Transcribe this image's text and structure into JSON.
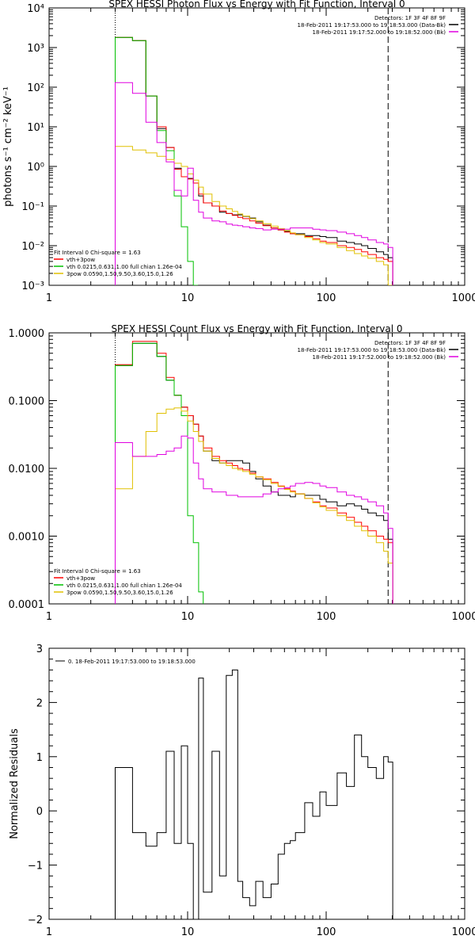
{
  "chart_data": [
    {
      "type": "line",
      "title": "SPEX HESSI Photon Flux vs Energy with Fit Function, Interval 0",
      "xlabel": "",
      "ylabel": "photons s⁻¹ cm⁻² keV⁻¹",
      "xscale": "log",
      "yscale": "log",
      "xlim": [
        1,
        1000
      ],
      "ylim": [
        0.001,
        10000
      ],
      "x_ticks": [
        "1",
        "10",
        "100",
        "1000"
      ],
      "y_ticks": [
        "10⁻³",
        "10⁻²",
        "10⁻¹",
        "10⁰",
        "10¹",
        "10²",
        "10³",
        "10⁴"
      ],
      "vlines": [
        3,
        280
      ],
      "legend_top_right": [
        "Detectors: 1F 3F 4F 8F 9F",
        "18-Feb-2011 19:17:53.000 to 19:18:53.000 (Data-Bk)",
        "18-Feb-2011 19:17:52.000 to 19:18:52.000 (Bk)"
      ],
      "legend_bottom_left": [
        "Fit Interval 0   Chi-square = 1.63",
        "vth+3pow",
        "vth 0.0215,0.631,1.00  full chian 1.26e-04",
        "3pow 0.0590,1.50,9.50,3.60,15.0,1.26"
      ],
      "series": [
        {
          "name": "18-Feb-2011 19:17:53.000 to 19:18:53.000 (Data-Bk)",
          "color": "#000000",
          "x": [
            3,
            4,
            5,
            6,
            7,
            8,
            9,
            10,
            11,
            12,
            13,
            15,
            17,
            19,
            21,
            23,
            25,
            28,
            31,
            35,
            40,
            45,
            50,
            55,
            60,
            70,
            80,
            90,
            100,
            120,
            140,
            160,
            180,
            200,
            230,
            260,
            280
          ],
          "y": [
            1800,
            1500,
            60,
            9,
            3,
            0.9,
            0.55,
            0.5,
            0.38,
            0.18,
            0.12,
            0.1,
            0.07,
            0.065,
            0.06,
            0.06,
            0.055,
            0.05,
            0.04,
            0.033,
            0.028,
            0.025,
            0.023,
            0.02,
            0.02,
            0.018,
            0.018,
            0.017,
            0.016,
            0.013,
            0.012,
            0.011,
            0.01,
            0.0085,
            0.007,
            0.006,
            0.005
          ]
        },
        {
          "name": "vth+3pow",
          "color": "#ff0000",
          "x": [
            3,
            4,
            5,
            6,
            7,
            8,
            9,
            10,
            11,
            12,
            13,
            15,
            17,
            19,
            21,
            23,
            25,
            28,
            31,
            35,
            40,
            45,
            50,
            55,
            60,
            70,
            80,
            90,
            100,
            120,
            140,
            160,
            180,
            200,
            230,
            260,
            280
          ],
          "y": [
            1800,
            1500,
            60,
            10,
            3,
            0.85,
            0.55,
            0.48,
            0.38,
            0.2,
            0.12,
            0.1,
            0.075,
            0.065,
            0.058,
            0.052,
            0.048,
            0.042,
            0.037,
            0.032,
            0.028,
            0.025,
            0.022,
            0.02,
            0.019,
            0.017,
            0.015,
            0.013,
            0.012,
            0.01,
            0.009,
            0.008,
            0.007,
            0.006,
            0.005,
            0.0045,
            0.004
          ]
        },
        {
          "name": "vth 0.0215,0.631,1.00  full chian 1.26e-04",
          "color": "#00c000",
          "x": [
            3,
            4,
            5,
            6,
            7,
            8,
            9,
            10,
            11
          ],
          "y": [
            1800,
            1500,
            60,
            8,
            2.5,
            0.18,
            0.03,
            0.004,
            0.0005
          ]
        },
        {
          "name": "3pow 0.0590,1.50,9.50,3.60,15.0,1.26",
          "color": "#e0c000",
          "x": [
            3,
            4,
            5,
            6,
            7,
            8,
            9,
            10,
            11,
            12,
            13,
            15,
            17,
            19,
            21,
            23,
            25,
            28,
            31,
            35,
            40,
            45,
            50,
            55,
            60,
            70,
            80,
            90,
            100,
            120,
            140,
            160,
            180,
            200,
            230,
            260,
            280
          ],
          "y": [
            3.2,
            2.6,
            2.2,
            1.8,
            1.5,
            1.2,
            1.0,
            0.65,
            0.45,
            0.3,
            0.2,
            0.13,
            0.1,
            0.085,
            0.073,
            0.063,
            0.056,
            0.048,
            0.042,
            0.036,
            0.031,
            0.027,
            0.024,
            0.021,
            0.019,
            0.016,
            0.014,
            0.012,
            0.011,
            0.009,
            0.0075,
            0.0063,
            0.0055,
            0.0048,
            0.004,
            0.0033,
            0.0009
          ]
        },
        {
          "name": "18-Feb-2011 19:17:52.000 to 19:18:52.000 (Bk)",
          "color": "#e000e0",
          "x": [
            3,
            4,
            5,
            6,
            7,
            8,
            9,
            10,
            11,
            12,
            13,
            15,
            17,
            19,
            21,
            23,
            25,
            28,
            31,
            35,
            40,
            45,
            50,
            55,
            60,
            70,
            80,
            90,
            100,
            120,
            140,
            160,
            180,
            200,
            230,
            260,
            280
          ],
          "y": [
            130,
            70,
            13,
            4,
            1.3,
            0.25,
            0.18,
            0.9,
            0.14,
            0.07,
            0.05,
            0.042,
            0.04,
            0.035,
            0.033,
            0.032,
            0.03,
            0.028,
            0.027,
            0.025,
            0.026,
            0.026,
            0.026,
            0.028,
            0.028,
            0.028,
            0.026,
            0.025,
            0.024,
            0.022,
            0.02,
            0.018,
            0.016,
            0.014,
            0.012,
            0.011,
            0.009
          ]
        }
      ]
    },
    {
      "type": "line",
      "title": "SPEX HESSI Count Flux vs Energy with Fit Function, Interval 0",
      "xlabel": "",
      "ylabel": "",
      "xscale": "log",
      "yscale": "log",
      "xlim": [
        1,
        1000
      ],
      "ylim": [
        0.0001,
        1.0
      ],
      "x_ticks": [
        "1",
        "10",
        "100",
        "1000"
      ],
      "y_ticks": [
        "0.0001",
        "0.0010",
        "0.0100",
        "0.1000",
        "1.0000"
      ],
      "vlines": [
        3,
        280
      ],
      "legend_top_right": [
        "Detectors: 1F 3F 4F 8F 9F",
        "18-Feb-2011 19:17:53.000 to 19:18:53.000 (Data-Bk)",
        "18-Feb-2011 19:17:52.000 to 19:18:52.000 (Bk)"
      ],
      "legend_bottom_left": [
        "Fit Interval 0   Chi-square = 1.63",
        "vth+3pow",
        "vth 0.0215,0.631,1.00  full chian 1.26e-04",
        "3pow 0.0590,1.50,9.50,3.60,15.0,1.26"
      ],
      "series": [
        {
          "name": "18-Feb-2011 19:17:53.000 to 19:18:53.000 (Data-Bk)",
          "color": "#000000",
          "x": [
            3,
            4,
            5,
            6,
            7,
            8,
            9,
            10,
            11,
            12,
            13,
            15,
            17,
            19,
            21,
            23,
            25,
            28,
            31,
            35,
            40,
            45,
            50,
            55,
            60,
            70,
            80,
            90,
            100,
            120,
            140,
            160,
            180,
            200,
            230,
            260,
            280
          ],
          "y": [
            0.33,
            0.7,
            0.7,
            0.45,
            0.2,
            0.12,
            0.08,
            0.06,
            0.045,
            0.03,
            0.018,
            0.013,
            0.012,
            0.013,
            0.013,
            0.013,
            0.012,
            0.009,
            0.007,
            0.0055,
            0.0045,
            0.004,
            0.004,
            0.0038,
            0.0042,
            0.004,
            0.004,
            0.0035,
            0.0032,
            0.0028,
            0.003,
            0.0028,
            0.0025,
            0.0022,
            0.002,
            0.0017,
            0.0009
          ]
        },
        {
          "name": "vth+3pow",
          "color": "#ff0000",
          "x": [
            3,
            4,
            5,
            6,
            7,
            8,
            9,
            10,
            11,
            12,
            13,
            15,
            17,
            19,
            21,
            23,
            25,
            28,
            31,
            35,
            40,
            45,
            50,
            55,
            60,
            70,
            80,
            90,
            100,
            120,
            140,
            160,
            180,
            200,
            230,
            260,
            280
          ],
          "y": [
            0.34,
            0.75,
            0.75,
            0.5,
            0.22,
            0.12,
            0.08,
            0.06,
            0.045,
            0.03,
            0.02,
            0.015,
            0.013,
            0.012,
            0.011,
            0.01,
            0.0095,
            0.0085,
            0.0075,
            0.007,
            0.0062,
            0.0055,
            0.005,
            0.0046,
            0.0042,
            0.0036,
            0.0032,
            0.0028,
            0.0026,
            0.0022,
            0.0019,
            0.0016,
            0.0014,
            0.0012,
            0.001,
            0.0009,
            0.0008
          ]
        },
        {
          "name": "vth 0.0215,0.631,1.00  full chian 1.26e-04",
          "color": "#00c000",
          "x": [
            3,
            4,
            5,
            6,
            7,
            8,
            9,
            10,
            11,
            12
          ],
          "y": [
            0.33,
            0.7,
            0.7,
            0.45,
            0.2,
            0.12,
            0.06,
            0.002,
            0.0008,
            0.00015
          ]
        },
        {
          "name": "3pow 0.0590,1.50,9.50,3.60,15.0,1.26",
          "color": "#e0c000",
          "x": [
            3,
            4,
            5,
            6,
            7,
            8,
            9,
            10,
            11,
            12,
            13,
            15,
            17,
            19,
            21,
            23,
            25,
            28,
            31,
            35,
            40,
            45,
            50,
            55,
            60,
            70,
            80,
            90,
            100,
            120,
            140,
            160,
            180,
            200,
            230,
            260,
            280
          ],
          "y": [
            0.005,
            0.015,
            0.035,
            0.065,
            0.075,
            0.078,
            0.07,
            0.05,
            0.035,
            0.025,
            0.018,
            0.014,
            0.012,
            0.011,
            0.01,
            0.0095,
            0.009,
            0.0082,
            0.0075,
            0.0068,
            0.006,
            0.0054,
            0.0049,
            0.0045,
            0.0042,
            0.0036,
            0.0031,
            0.0027,
            0.0024,
            0.002,
            0.0017,
            0.0014,
            0.0012,
            0.001,
            0.0008,
            0.0006,
            0.0004
          ]
        },
        {
          "name": "18-Feb-2011 19:17:52.000 to 19:18:52.000 (Bk)",
          "color": "#e000e0",
          "x": [
            3,
            4,
            5,
            6,
            7,
            8,
            9,
            10,
            11,
            12,
            13,
            15,
            17,
            19,
            21,
            23,
            25,
            28,
            31,
            35,
            40,
            45,
            50,
            55,
            60,
            70,
            80,
            90,
            100,
            120,
            140,
            160,
            180,
            200,
            230,
            260,
            280
          ],
          "y": [
            0.024,
            0.015,
            0.015,
            0.016,
            0.018,
            0.02,
            0.03,
            0.028,
            0.012,
            0.007,
            0.005,
            0.0045,
            0.0045,
            0.004,
            0.004,
            0.0038,
            0.0038,
            0.0038,
            0.0038,
            0.0042,
            0.0045,
            0.005,
            0.0052,
            0.0055,
            0.006,
            0.0062,
            0.006,
            0.0055,
            0.0052,
            0.0045,
            0.004,
            0.0038,
            0.0035,
            0.0032,
            0.0028,
            0.0022,
            0.0013
          ]
        }
      ]
    },
    {
      "type": "line",
      "title": "",
      "xlabel": "",
      "ylabel": "Normalized Residuals",
      "xscale": "log",
      "xlim": [
        1,
        1000
      ],
      "ylim": [
        -2,
        3
      ],
      "x_ticks": [
        "1",
        "10",
        "100",
        "1000"
      ],
      "y_ticks": [
        "−2",
        "−1",
        "0",
        "1",
        "2",
        "3"
      ],
      "legend": [
        "0. 18-Feb-2011 19:17:53.000 to 19:18:53.000"
      ],
      "series": [
        {
          "name": "0. 18-Feb-2011 19:17:53.000 to 19:18:53.000",
          "color": "#000000",
          "x": [
            3,
            4,
            5,
            6,
            7,
            8,
            9,
            10,
            11,
            12,
            13,
            15,
            17,
            19,
            21,
            23,
            25,
            28,
            31,
            35,
            40,
            45,
            50,
            55,
            60,
            70,
            80,
            90,
            100,
            120,
            140,
            160,
            180,
            200,
            230,
            260,
            280
          ],
          "y": [
            0.8,
            -0.4,
            -0.65,
            -0.4,
            1.1,
            -0.6,
            1.2,
            -0.6,
            -2.0,
            2.45,
            -1.5,
            1.1,
            -1.2,
            2.5,
            2.6,
            -1.3,
            -1.6,
            -1.75,
            -1.3,
            -1.6,
            -1.35,
            -0.8,
            -0.6,
            -0.55,
            -0.4,
            0.15,
            -0.1,
            0.35,
            0.1,
            0.7,
            0.45,
            1.4,
            1.0,
            0.8,
            0.6,
            1.0,
            0.9
          ]
        }
      ]
    }
  ]
}
